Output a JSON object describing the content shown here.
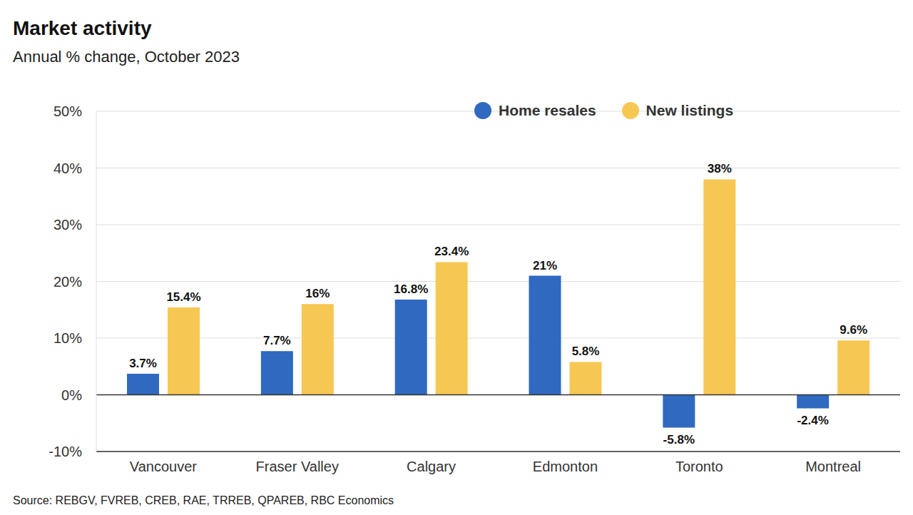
{
  "chart_data": {
    "type": "bar",
    "title": "Market activity",
    "subtitle": "Annual % change, October 2023",
    "source": "Source: REBGV, FVREB, CREB, RAE, TRREB, QPAREB, RBC Economics",
    "categories": [
      "Vancouver",
      "Fraser Valley",
      "Calgary",
      "Edmonton",
      "Toronto",
      "Montreal"
    ],
    "series": [
      {
        "name": "Home resales",
        "color": "#2f69c0",
        "values": [
          3.7,
          7.7,
          16.8,
          21,
          -5.8,
          -2.4
        ],
        "value_labels": [
          "3.7%",
          "7.7%",
          "16.8%",
          "21%",
          "-5.8%",
          "-2.4%"
        ]
      },
      {
        "name": "New listings",
        "color": "#f7c753",
        "values": [
          15.4,
          16,
          23.4,
          5.8,
          38,
          9.6
        ],
        "value_labels": [
          "15.4%",
          "16%",
          "23.4%",
          "5.8%",
          "38%",
          "9.6%"
        ]
      }
    ],
    "ylim": [
      -10,
      50
    ],
    "yticks": [
      {
        "value": -10,
        "label": "-10%"
      },
      {
        "value": 0,
        "label": "0%"
      },
      {
        "value": 10,
        "label": "10%"
      },
      {
        "value": 20,
        "label": "20%"
      },
      {
        "value": 30,
        "label": "30%"
      },
      {
        "value": 40,
        "label": "40%"
      },
      {
        "value": 50,
        "label": "50%"
      }
    ],
    "grid": true,
    "legend": "top",
    "data_labels": true
  }
}
